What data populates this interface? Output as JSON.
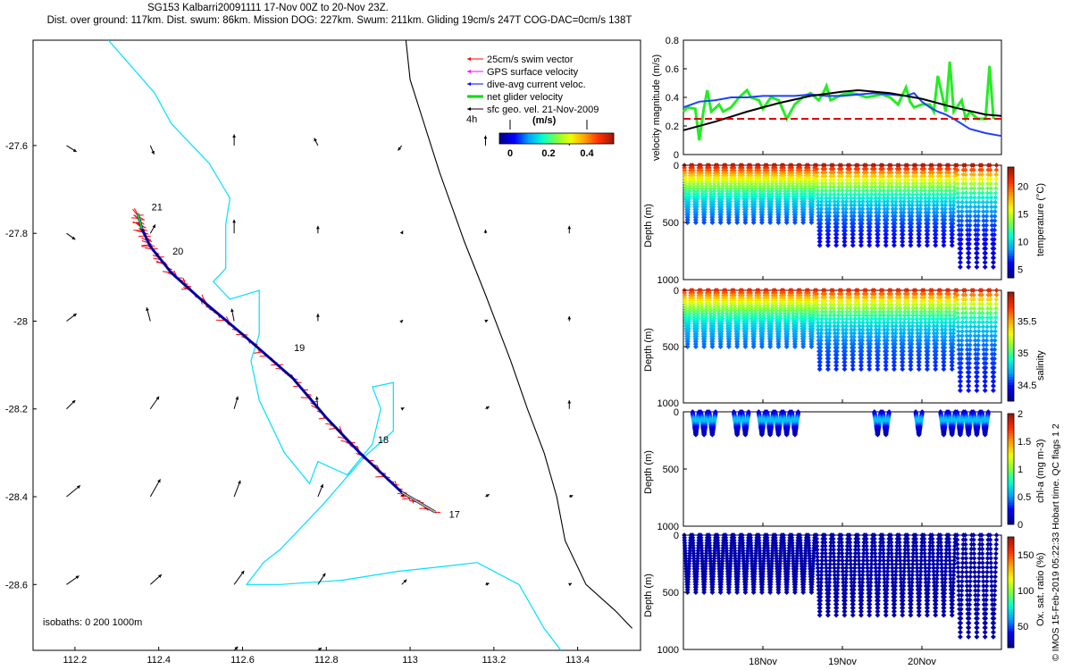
{
  "header": {
    "line1": "SG153 Kalbarri20091111 17-Nov 00Z to 20-Nov 23Z.",
    "line2": "Dist. over ground: 117km. Dist. swum: 86km. Mission DOG: 227km. Swum: 211km. Gliding 19cm/s 247T COG-DAC=0cm/s 138T"
  },
  "credit": "© IMOS 15-Feb-2019 05:22:33 Hobart time. QC flags 1  2",
  "colors": {
    "swim": "#ff0000",
    "gps": "#ff00ff",
    "dive_avg": "#0000ff",
    "net": "#00dd00",
    "sfc": "#000000",
    "isobath": "#00e0ff",
    "coast": "#000000",
    "series_green": "#22ee22",
    "series_blue": "#1f3fff",
    "series_red": "#e00000",
    "series_black": "#000000",
    "colormap": [
      "#00008f",
      "#0000ff",
      "#00a0ff",
      "#00ffd0",
      "#80ff40",
      "#f0ff00",
      "#ffa000",
      "#ff3000",
      "#9f1a0a"
    ]
  },
  "chart_data": [
    {
      "type": "scatter",
      "id": "map",
      "x": [
        112.1,
        113.55
      ],
      "y": [
        -28.75,
        -27.36
      ],
      "xticks": [
        "112.2",
        "112.4",
        "112.6",
        "112.8",
        "113",
        "113.2",
        "113.4"
      ],
      "xtick_values": [
        112.2,
        112.4,
        112.6,
        112.8,
        113.0,
        113.2,
        113.4
      ],
      "yticks": [
        "-27.6",
        "-27.8",
        "-28",
        "-28.2",
        "-28.4",
        "-28.6"
      ],
      "ytick_values": [
        -27.6,
        -27.8,
        -28.0,
        -28.2,
        -28.4,
        -28.6
      ],
      "legend": {
        "entries": [
          "25cm/s swim vector",
          "GPS surface velocity",
          "dive-avg current veloc.",
          "net glider velocity",
          "sfc geo. vel. 21-Nov-2009"
        ],
        "scale_label": "4h",
        "colorbar_label": "(m/s)",
        "colorbar_ticks": [
          "0",
          "0.2",
          "0.4"
        ]
      },
      "isobath_note": "isobaths: 0   200  1000m",
      "day_labels": [
        {
          "text": "21",
          "lon": 112.37,
          "lat": -27.74
        },
        {
          "text": "20",
          "lon": 112.42,
          "lat": -27.84
        },
        {
          "text": "19",
          "lon": 112.71,
          "lat": -28.06
        },
        {
          "text": "18",
          "lon": 112.91,
          "lat": -28.27
        },
        {
          "text": "17",
          "lon": 113.08,
          "lat": -28.44
        }
      ],
      "track": [
        [
          113.06,
          -28.435
        ],
        [
          112.98,
          -28.39
        ],
        [
          112.88,
          -28.3
        ],
        [
          112.8,
          -28.22
        ],
        [
          112.72,
          -28.13
        ],
        [
          112.6,
          -28.03
        ],
        [
          112.5,
          -27.95
        ],
        [
          112.43,
          -27.89
        ],
        [
          112.38,
          -27.83
        ],
        [
          112.36,
          -27.79
        ],
        [
          112.35,
          -27.755
        ]
      ],
      "coastline": [
        [
          112.99,
          -27.36
        ],
        [
          113.0,
          -27.45
        ],
        [
          113.07,
          -27.66
        ],
        [
          113.13,
          -27.82
        ],
        [
          113.18,
          -27.94
        ],
        [
          113.24,
          -28.09
        ],
        [
          113.28,
          -28.2
        ],
        [
          113.32,
          -28.3
        ],
        [
          113.35,
          -28.4
        ],
        [
          113.37,
          -28.5
        ],
        [
          113.42,
          -28.6
        ],
        [
          113.49,
          -28.66
        ],
        [
          113.53,
          -28.7
        ]
      ],
      "isobath_200": [
        [
          112.28,
          -27.36
        ],
        [
          112.39,
          -27.48
        ],
        [
          112.43,
          -27.55
        ],
        [
          112.48,
          -27.6
        ],
        [
          112.52,
          -27.64
        ],
        [
          112.57,
          -27.72
        ],
        [
          112.56,
          -27.78
        ],
        [
          112.56,
          -27.88
        ],
        [
          112.53,
          -27.91
        ],
        [
          112.57,
          -27.95
        ],
        [
          112.64,
          -27.93
        ],
        [
          112.64,
          -28.03
        ],
        [
          112.62,
          -28.09
        ],
        [
          112.64,
          -28.18
        ],
        [
          112.7,
          -28.3
        ],
        [
          112.76,
          -28.37
        ],
        [
          112.78,
          -28.32
        ],
        [
          112.85,
          -28.35
        ],
        [
          112.91,
          -28.28
        ],
        [
          112.93,
          -28.2
        ],
        [
          112.91,
          -28.15
        ],
        [
          112.96,
          -28.14
        ],
        [
          112.96,
          -28.25
        ],
        [
          112.89,
          -28.31
        ],
        [
          112.79,
          -28.42
        ],
        [
          112.69,
          -28.52
        ],
        [
          112.65,
          -28.55
        ],
        [
          112.61,
          -28.6
        ],
        [
          112.69,
          -28.6
        ],
        [
          112.84,
          -28.59
        ],
        [
          112.97,
          -28.57
        ],
        [
          113.07,
          -28.56
        ],
        [
          113.16,
          -28.55
        ],
        [
          113.26,
          -28.6
        ],
        [
          113.32,
          -28.7
        ],
        [
          113.36,
          -28.75
        ]
      ],
      "sfc_vectors": [
        {
          "lon": 112.18,
          "lat": -27.6,
          "u": 0.8,
          "v": -0.5
        },
        {
          "lon": 112.38,
          "lat": -27.6,
          "u": 0.3,
          "v": -0.7
        },
        {
          "lon": 112.58,
          "lat": -27.6,
          "u": 0.0,
          "v": 0.9
        },
        {
          "lon": 112.78,
          "lat": -27.6,
          "u": -0.3,
          "v": 0.6
        },
        {
          "lon": 112.98,
          "lat": -27.6,
          "u": -0.3,
          "v": -0.4
        },
        {
          "lon": 113.18,
          "lat": -27.6,
          "u": 0.0,
          "v": 0.8
        },
        {
          "lon": 113.38,
          "lat": -27.6,
          "u": 0.0,
          "v": 0.8
        },
        {
          "lon": 112.18,
          "lat": -27.8,
          "u": 0.7,
          "v": -0.5
        },
        {
          "lon": 112.38,
          "lat": -27.8,
          "u": 0.4,
          "v": 0.7
        },
        {
          "lon": 112.58,
          "lat": -27.8,
          "u": 0.0,
          "v": 1.1
        },
        {
          "lon": 112.78,
          "lat": -27.8,
          "u": 0.0,
          "v": 0.6
        },
        {
          "lon": 112.98,
          "lat": -27.8,
          "u": 0.1,
          "v": 0.2
        },
        {
          "lon": 113.18,
          "lat": -27.8,
          "u": 0.0,
          "v": 0.3
        },
        {
          "lon": 113.38,
          "lat": -27.8,
          "u": 0.0,
          "v": 0.6
        },
        {
          "lon": 112.18,
          "lat": -28.0,
          "u": 0.8,
          "v": 0.6
        },
        {
          "lon": 112.38,
          "lat": -28.0,
          "u": -0.3,
          "v": 1.1
        },
        {
          "lon": 112.58,
          "lat": -28.0,
          "u": -0.2,
          "v": 1.0
        },
        {
          "lon": 112.78,
          "lat": -28.0,
          "u": 0.0,
          "v": 0.6
        },
        {
          "lon": 112.98,
          "lat": -28.0,
          "u": 0.1,
          "v": 0.1
        },
        {
          "lon": 113.18,
          "lat": -28.0,
          "u": 0.2,
          "v": 0.1
        },
        {
          "lon": 113.38,
          "lat": -28.0,
          "u": 0.0,
          "v": 0.4
        },
        {
          "lon": 112.18,
          "lat": -28.2,
          "u": 0.7,
          "v": 0.7
        },
        {
          "lon": 112.38,
          "lat": -28.2,
          "u": 0.7,
          "v": 1.0
        },
        {
          "lon": 112.58,
          "lat": -28.2,
          "u": 0.3,
          "v": 1.0
        },
        {
          "lon": 112.78,
          "lat": -28.2,
          "u": -0.1,
          "v": 1.0
        },
        {
          "lon": 112.98,
          "lat": -28.2,
          "u": 0.2,
          "v": 0.1
        },
        {
          "lon": 113.18,
          "lat": -28.2,
          "u": 0.3,
          "v": 0.2
        },
        {
          "lon": 113.38,
          "lat": -28.2,
          "u": 0.0,
          "v": 0.7
        },
        {
          "lon": 112.18,
          "lat": -28.4,
          "u": 1.1,
          "v": 0.9
        },
        {
          "lon": 112.38,
          "lat": -28.4,
          "u": 0.8,
          "v": 1.4
        },
        {
          "lon": 112.58,
          "lat": -28.4,
          "u": 0.5,
          "v": 1.3
        },
        {
          "lon": 112.78,
          "lat": -28.4,
          "u": 0.4,
          "v": 1.0
        },
        {
          "lon": 112.98,
          "lat": -28.4,
          "u": 0.2,
          "v": 0.2
        },
        {
          "lon": 113.18,
          "lat": -28.4,
          "u": 0.3,
          "v": 0.2
        },
        {
          "lon": 113.38,
          "lat": -28.4,
          "u": 0.3,
          "v": 0.1
        },
        {
          "lon": 112.18,
          "lat": -28.6,
          "u": 1.0,
          "v": 0.7
        },
        {
          "lon": 112.38,
          "lat": -28.6,
          "u": 0.9,
          "v": 0.8
        },
        {
          "lon": 112.58,
          "lat": -28.6,
          "u": 0.8,
          "v": 1.1
        },
        {
          "lon": 112.78,
          "lat": -28.6,
          "u": 0.6,
          "v": 0.9
        },
        {
          "lon": 112.98,
          "lat": -28.6,
          "u": 0.4,
          "v": 0.4
        },
        {
          "lon": 113.18,
          "lat": -28.6,
          "u": 0.3,
          "v": 0.1
        },
        {
          "lon": 113.38,
          "lat": -28.6,
          "u": 0.2,
          "v": 0.1
        },
        {
          "lon": 112.58,
          "lat": -28.75,
          "u": 0.3,
          "v": 0.3
        },
        {
          "lon": 112.78,
          "lat": -28.75,
          "u": 0.3,
          "v": 0.2
        }
      ]
    },
    {
      "type": "line",
      "id": "velocity",
      "ylabel": "velocity magnitude (m/s)",
      "ylim": [
        0,
        0.8
      ],
      "yticks": [
        "0",
        "0.2",
        "0.4",
        "0.6",
        "0.8"
      ],
      "xlim": [
        17.0,
        21.0
      ],
      "series": [
        {
          "color": "green",
          "x": [
            17.0,
            17.05,
            17.15,
            17.2,
            17.25,
            17.3,
            17.35,
            17.45,
            17.5,
            17.6,
            17.7,
            17.8,
            17.85,
            17.95,
            18.0,
            18.1,
            18.2,
            18.3,
            18.4,
            18.5,
            18.6,
            18.7,
            18.75,
            18.8,
            18.85,
            19.0,
            19.1,
            19.2,
            19.3,
            19.4,
            19.5,
            19.6,
            19.7,
            19.8,
            19.85,
            19.9,
            20.0,
            20.1,
            20.15,
            20.2,
            20.3,
            20.35,
            20.4,
            20.5,
            20.55,
            20.6,
            20.7,
            20.8,
            20.85,
            20.9
          ],
          "y": [
            0.3,
            0.33,
            0.32,
            0.1,
            0.3,
            0.45,
            0.3,
            0.35,
            0.3,
            0.33,
            0.4,
            0.45,
            0.4,
            0.38,
            0.32,
            0.4,
            0.38,
            0.25,
            0.35,
            0.4,
            0.43,
            0.38,
            0.42,
            0.48,
            0.38,
            0.42,
            0.43,
            0.42,
            0.4,
            0.41,
            0.42,
            0.4,
            0.35,
            0.47,
            0.37,
            0.33,
            0.35,
            0.35,
            0.3,
            0.55,
            0.3,
            0.65,
            0.3,
            0.38,
            0.25,
            0.3,
            0.25,
            0.25,
            0.62,
            0.25
          ]
        },
        {
          "color": "blue",
          "x": [
            17.0,
            17.2,
            17.4,
            17.6,
            17.8,
            18.0,
            18.2,
            18.4,
            18.6,
            18.8,
            19.0,
            19.2,
            19.4,
            19.6,
            19.8,
            19.9,
            20.0,
            20.1,
            20.2,
            20.3,
            20.4,
            20.6,
            20.8,
            21.0
          ],
          "y": [
            0.33,
            0.37,
            0.38,
            0.4,
            0.4,
            0.41,
            0.41,
            0.41,
            0.42,
            0.41,
            0.41,
            0.42,
            0.43,
            0.42,
            0.41,
            0.43,
            0.37,
            0.33,
            0.3,
            0.28,
            0.25,
            0.18,
            0.15,
            0.13
          ]
        },
        {
          "color": "black",
          "x": [
            17.0,
            17.4,
            17.8,
            18.2,
            18.6,
            19.0,
            19.2,
            19.6,
            20.0,
            20.4,
            20.8,
            21.0
          ],
          "y": [
            0.17,
            0.23,
            0.3,
            0.36,
            0.41,
            0.44,
            0.45,
            0.43,
            0.39,
            0.33,
            0.28,
            0.27
          ]
        },
        {
          "color": "red",
          "dashed": true,
          "x": [
            17.0,
            21.0
          ],
          "y": [
            0.25,
            0.25
          ]
        }
      ]
    },
    {
      "type": "scatter",
      "id": "temperature",
      "ylabel": "Depth (m)",
      "ylim": [
        1000,
        0
      ],
      "yticks": [
        "0",
        "500",
        "1000"
      ],
      "colorbar_label": "temperature (°C)",
      "colorbar_ticks": [
        "5",
        "10",
        "15",
        "20"
      ],
      "clim": [
        3.5,
        23.5
      ],
      "dives_start": 17.0,
      "dives_end": 20.95,
      "n_dives": 38,
      "max_depth": [
        500,
        500,
        500,
        500,
        500,
        500,
        500,
        500,
        500,
        500,
        500,
        500,
        500,
        500,
        500,
        500,
        700,
        700,
        700,
        700,
        700,
        700,
        700,
        700,
        700,
        700,
        700,
        700,
        700,
        700,
        700,
        700,
        700,
        890,
        890,
        890,
        890,
        890
      ],
      "surface_value": 23,
      "deep_value": 4.5
    },
    {
      "type": "scatter",
      "id": "salinity",
      "ylabel": "Depth (m)",
      "ylim": [
        1000,
        0
      ],
      "yticks": [
        "0",
        "500",
        "1000"
      ],
      "colorbar_label": "salinity",
      "colorbar_ticks": [
        "34.5",
        "35",
        "35.5"
      ],
      "clim": [
        34.25,
        35.95
      ],
      "surface_value": 35.8,
      "deep_value": 34.45
    },
    {
      "type": "scatter",
      "id": "chla",
      "ylabel": "Depth (m)",
      "ylim": [
        1000,
        0
      ],
      "yticks": [
        "0",
        "500",
        "1000"
      ],
      "colorbar_label": "chl-a (mg m-3)",
      "colorbar_ticks": [
        "0",
        "0.5",
        "1",
        "1.5",
        "2"
      ],
      "clim": [
        0,
        2
      ],
      "profile_groups": [
        [
          17.05,
          17.35
        ],
        [
          17.55,
          17.75
        ],
        [
          17.95,
          18.45
        ],
        [
          19.35,
          19.55
        ],
        [
          19.85,
          19.95
        ],
        [
          20.2,
          20.8
        ]
      ],
      "max_depth": 200
    },
    {
      "type": "scatter",
      "id": "oxygen",
      "ylabel": "Depth (m)",
      "ylim": [
        1000,
        0
      ],
      "yticks": [
        "0",
        "500",
        "1000"
      ],
      "colorbar_label": "Ox. sat. ratio (%)",
      "colorbar_ticks": [
        "50",
        "100",
        "150"
      ],
      "clim": [
        20,
        175
      ],
      "xticks": [
        "18Nov",
        "19Nov",
        "20Nov"
      ],
      "xtick_values": [
        18.0,
        19.0,
        20.0
      ]
    }
  ]
}
